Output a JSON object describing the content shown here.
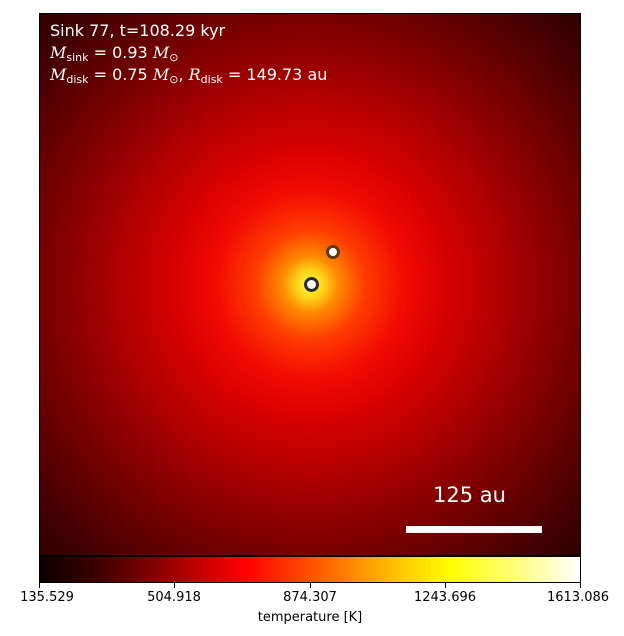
{
  "panel": {
    "title_line": "Sink 77, t=108.29 kyr",
    "msink": {
      "symbol": "M",
      "subscript": "sink",
      "value": " = 0.93 ",
      "unit_symbol": "M",
      "unit_subscript": "⊙"
    },
    "mdisk": {
      "symbol": "M",
      "subscript": "disk",
      "value": " = 0.75 ",
      "unit_symbol": "M",
      "unit_subscript": "⊙",
      "separator": ", ",
      "r_symbol": "R",
      "r_subscript": "disk",
      "r_value": " = 149.73 au"
    },
    "scale_bar_label": "125 au",
    "sink_count": 2
  },
  "colorbar": {
    "label": "temperature [K]",
    "ticks": [
      "135.529",
      "504.918",
      "874.307",
      "1243.696",
      "1613.086"
    ],
    "colormap": "hot"
  }
}
